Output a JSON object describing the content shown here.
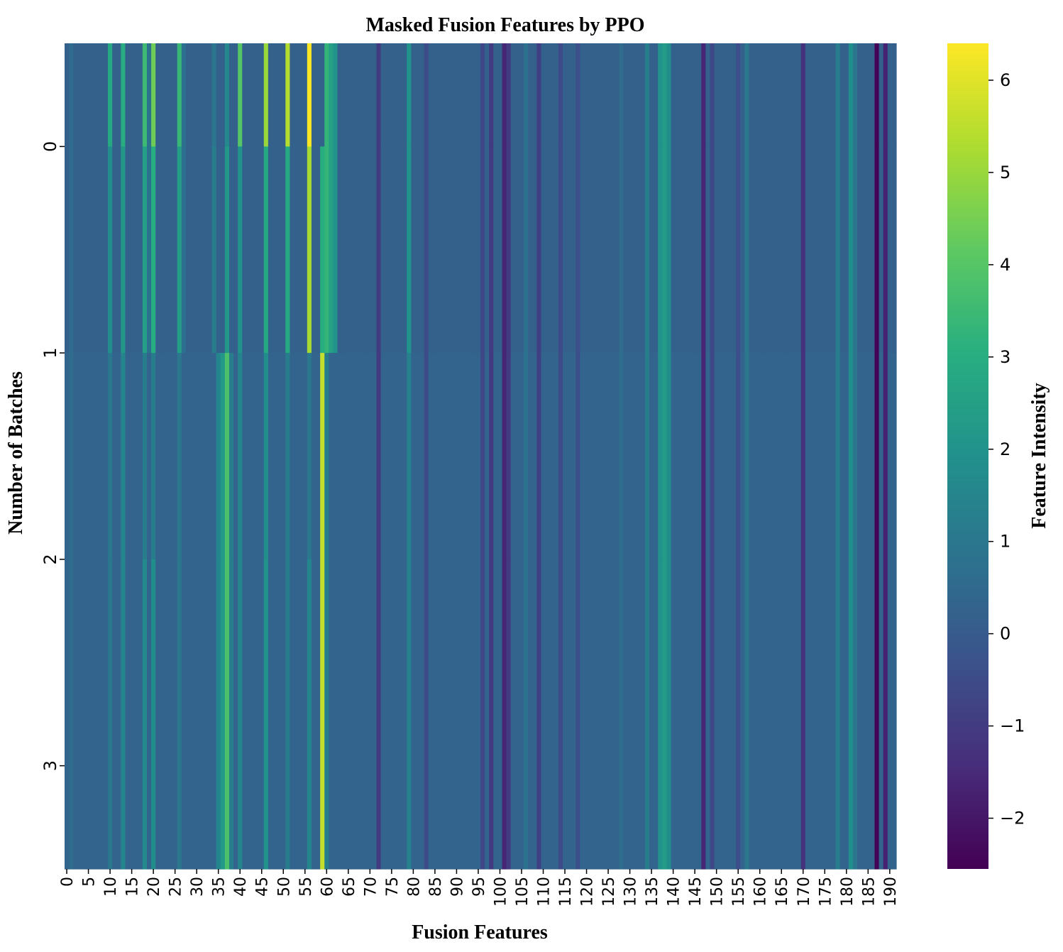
{
  "chart_data": {
    "type": "heatmap",
    "title": "Masked Fusion Features by PPO",
    "xlabel": "Fusion Features",
    "ylabel": "Number of Batches",
    "colorbar_label": "Feature Intensity",
    "colormap": "viridis",
    "vmin": -2.55,
    "vmax": 6.4,
    "n_columns": 192,
    "x_ticks": [
      0,
      5,
      10,
      15,
      20,
      25,
      30,
      35,
      40,
      45,
      50,
      55,
      60,
      65,
      70,
      75,
      80,
      85,
      90,
      95,
      100,
      105,
      110,
      115,
      120,
      125,
      130,
      135,
      140,
      145,
      150,
      155,
      160,
      165,
      170,
      175,
      180,
      185,
      190
    ],
    "x_tick_labels": [
      "0",
      "5",
      "10",
      "15",
      "20",
      "25",
      "30",
      "35",
      "40",
      "45",
      "50",
      "55",
      "60",
      "65",
      "70",
      "75",
      "80",
      "85",
      "90",
      "95",
      "100",
      "105",
      "110",
      "115",
      "120",
      "125",
      "130",
      "135",
      "140",
      "145",
      "150",
      "155",
      "160",
      "165",
      "170",
      "175",
      "180",
      "185",
      "190"
    ],
    "y_ticks": [
      0,
      1,
      2,
      3
    ],
    "y_tick_labels": [
      "0",
      "1",
      "2",
      "3"
    ],
    "colorbar_ticks": [
      -2,
      -1,
      0,
      1,
      2,
      3,
      4,
      5,
      6
    ],
    "colorbar_tick_labels": [
      "−2",
      "−1",
      "0",
      "1",
      "2",
      "3",
      "4",
      "5",
      "6"
    ],
    "row_segments": [
      {
        "rows": [
          0,
          0.5
        ],
        "default": 0.2,
        "cells": {
          "1": 0.6,
          "10": 2.8,
          "13": 3.0,
          "18": 3.5,
          "19": 0.8,
          "20": 4.4,
          "26": 3.4,
          "27": 0.7,
          "34": 0.9,
          "37": 1.6,
          "40": 4.0,
          "46": 5.0,
          "51": 5.4,
          "56": 6.4,
          "60": 3.3,
          "61": 2.5,
          "62": 2.0,
          "72": -1.0,
          "79": 2.0,
          "83": -0.5,
          "96": -0.6,
          "98": -1.0,
          "101": -1.6,
          "102": -1.0,
          "106": 0.8,
          "109": -0.9,
          "114": -0.5,
          "118": -0.4,
          "128": 0.6,
          "134": 1.2,
          "137": 2.0,
          "138": 2.3,
          "139": 1.8,
          "147": -1.6,
          "149": -0.6,
          "155": -0.4,
          "157": 1.0,
          "170": -1.3,
          "178": 1.2,
          "181": 1.8,
          "182": 0.9,
          "187": -2.5,
          "189": -1.7
        }
      },
      {
        "rows": [
          0.5,
          1.5
        ],
        "default": 0.2,
        "cells": {
          "1": 0.6,
          "10": 1.8,
          "13": 2.2,
          "18": 2.5,
          "19": 0.8,
          "20": 3.0,
          "26": 2.4,
          "27": 0.7,
          "34": 1.2,
          "37": 2.2,
          "40": 2.0,
          "46": 2.8,
          "51": 2.9,
          "56": 5.2,
          "59": 3.0,
          "60": 3.3,
          "61": 2.5,
          "62": 2.0,
          "72": -1.0,
          "79": 2.0,
          "83": -0.5,
          "96": -0.6,
          "98": -1.0,
          "101": -1.6,
          "102": -1.0,
          "106": 0.8,
          "109": -0.9,
          "114": -0.5,
          "118": -0.4,
          "128": 0.6,
          "134": 1.2,
          "137": 2.0,
          "138": 2.3,
          "139": 1.8,
          "147": -1.6,
          "149": -0.6,
          "155": -0.4,
          "157": 1.0,
          "170": -1.3,
          "178": 1.2,
          "181": 1.8,
          "182": 0.9,
          "187": -2.5,
          "189": -1.7
        }
      },
      {
        "rows": [
          1.5,
          2.5
        ],
        "default": 0.3,
        "cells": {
          "1": 0.6,
          "10": 1.0,
          "13": 1.5,
          "18": 1.2,
          "20": 1.2,
          "26": 1.0,
          "35": 1.5,
          "36": 2.2,
          "37": 3.8,
          "38": 1.2,
          "40": 1.5,
          "46": 1.8,
          "51": 1.2,
          "56": 1.0,
          "59": 5.6,
          "60": 1.2,
          "72": -1.0,
          "79": 1.3,
          "83": -0.5,
          "96": -0.6,
          "98": -1.0,
          "101": -1.6,
          "102": -1.0,
          "106": 0.8,
          "109": -0.9,
          "114": -0.5,
          "118": -0.4,
          "128": 0.6,
          "134": 1.2,
          "137": 2.0,
          "138": 2.3,
          "139": 1.8,
          "147": -1.6,
          "149": -0.6,
          "155": -0.4,
          "157": 1.0,
          "170": -1.3,
          "178": 1.2,
          "181": 1.8,
          "182": 0.9,
          "187": -2.5,
          "189": -1.7
        }
      },
      {
        "rows": [
          2.5,
          4
        ],
        "default": 0.3,
        "cells": {
          "1": 0.6,
          "10": 1.0,
          "13": 1.5,
          "18": 1.7,
          "20": 1.8,
          "26": 1.0,
          "35": 1.5,
          "36": 2.2,
          "37": 3.8,
          "38": 1.2,
          "40": 1.5,
          "46": 2.0,
          "51": 1.2,
          "56": 1.5,
          "59": 5.6,
          "60": 1.2,
          "72": -1.0,
          "79": 1.3,
          "83": -0.5,
          "96": -0.6,
          "98": -1.0,
          "101": -1.6,
          "102": -1.0,
          "106": 0.8,
          "109": -0.9,
          "114": -0.5,
          "118": -0.4,
          "128": 0.6,
          "134": 1.2,
          "137": 2.0,
          "138": 2.3,
          "139": 1.8,
          "147": -1.6,
          "149": -0.6,
          "155": -0.4,
          "157": 1.0,
          "170": -1.3,
          "178": 1.2,
          "181": 1.8,
          "182": 0.9,
          "187": -2.5,
          "189": -1.7
        }
      }
    ]
  }
}
